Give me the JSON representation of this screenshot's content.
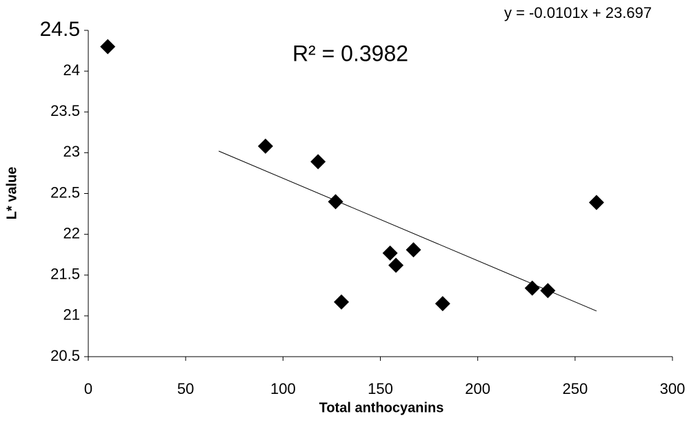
{
  "chart_data": {
    "type": "scatter",
    "x_label": "Total anthocyanins",
    "y_label": "L* value",
    "equation": "y = -0.0101x + 23.697",
    "r_squared": "R² = 0.3982",
    "x": [
      10,
      91,
      118,
      127,
      130,
      155,
      158,
      167,
      182,
      228,
      236,
      261
    ],
    "values": [
      24.3,
      23.08,
      22.89,
      22.4,
      21.17,
      21.77,
      21.62,
      21.81,
      21.15,
      21.34,
      21.31,
      22.39
    ],
    "color": "#000000",
    "trendline": {
      "x": [
        67,
        261
      ],
      "values": [
        23.02,
        21.06
      ]
    },
    "xlim": [
      0,
      300
    ],
    "xticks": [
      0,
      50,
      100,
      150,
      200,
      250,
      300
    ],
    "ylim": [
      20.5,
      24.5
    ],
    "yticks": [
      20.5,
      21,
      21.5,
      22,
      22.5,
      23,
      23.5,
      24,
      24.5
    ],
    "grid": false
  }
}
